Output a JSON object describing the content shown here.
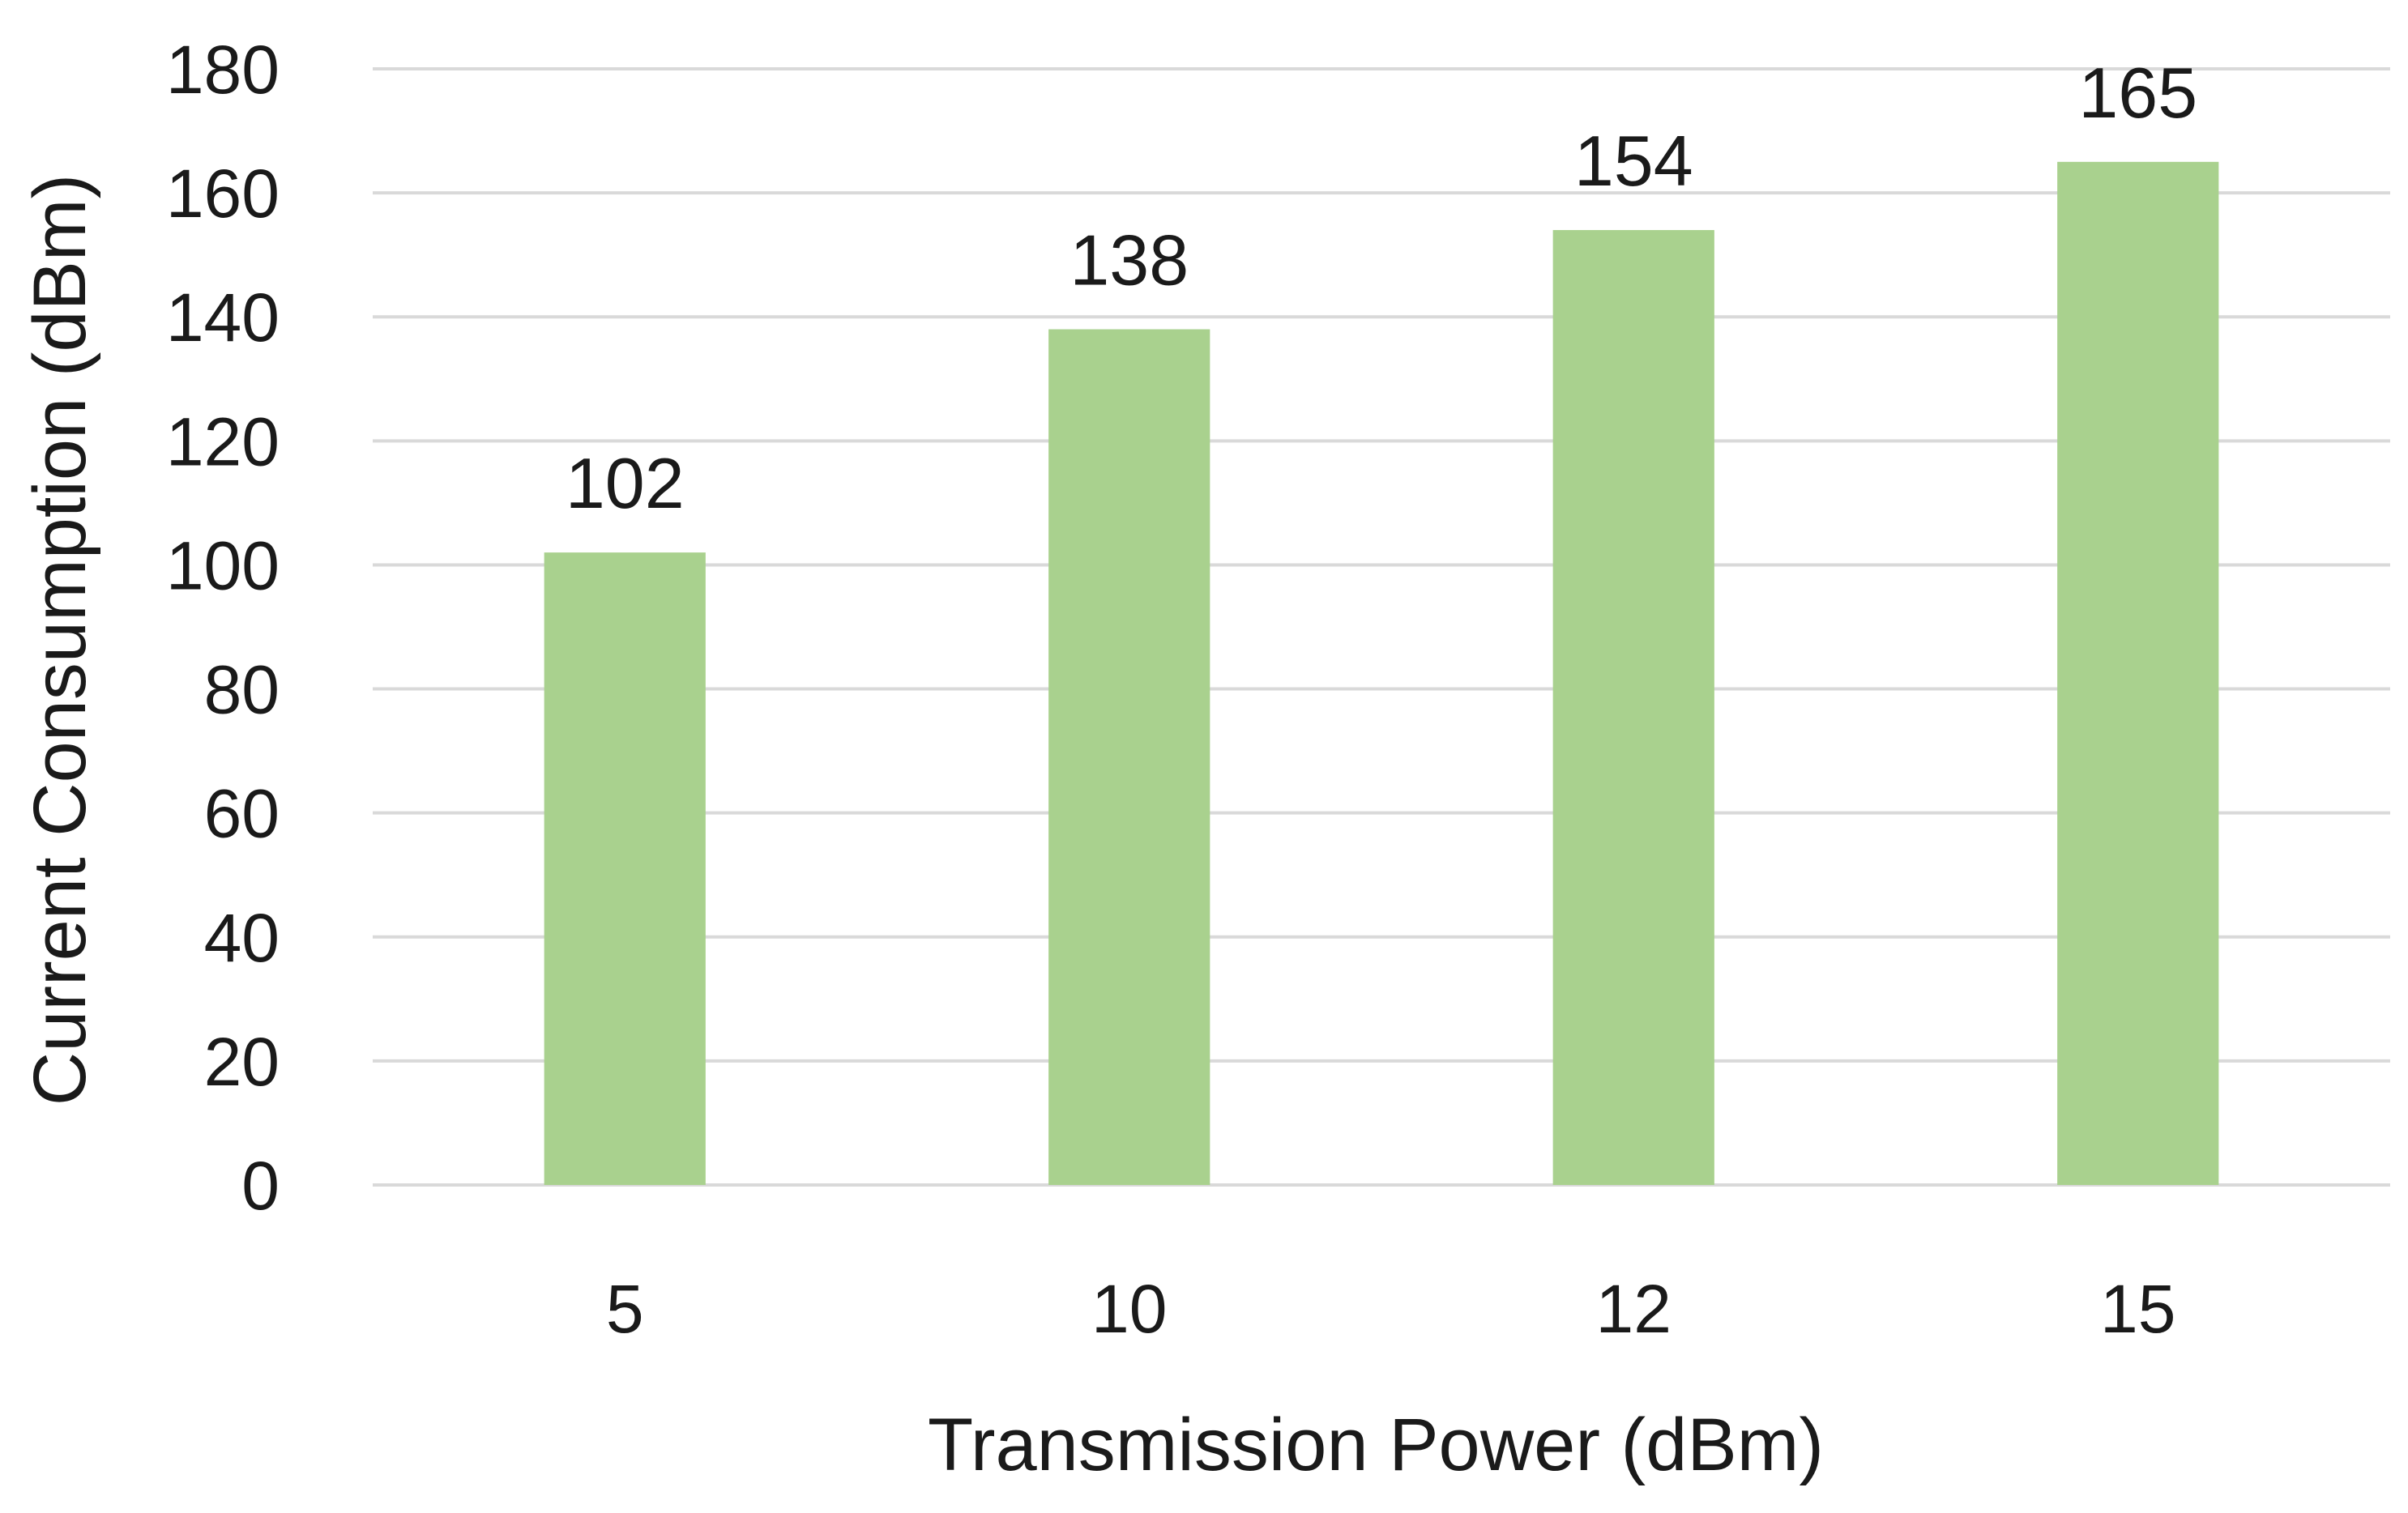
{
  "chart_data": {
    "type": "bar",
    "title": "",
    "xlabel": "Transmission Power (dBm)",
    "ylabel": "Current Consumption (dBm)",
    "categories": [
      "5",
      "10",
      "12",
      "15"
    ],
    "values": [
      102,
      138,
      154,
      165
    ],
    "data_labels": [
      "102",
      "138",
      "154",
      "165"
    ],
    "ylim": [
      0,
      180
    ],
    "yticks": [
      0,
      20,
      40,
      60,
      80,
      100,
      120,
      140,
      160,
      180
    ],
    "grid": true,
    "legend": "none",
    "colors": {
      "bar": "#a9d18e",
      "grid": "#d9d9d9",
      "text": "#1a1a1a"
    }
  }
}
